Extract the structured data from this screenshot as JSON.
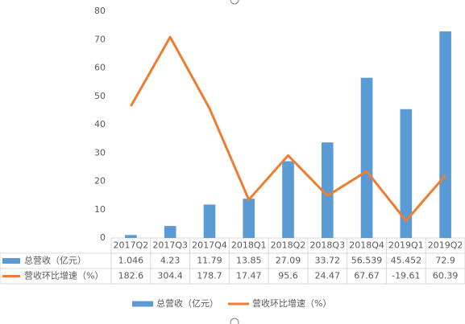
{
  "chart_data": {
    "type": "bar",
    "categories": [
      "2017Q2",
      "2017Q3",
      "2017Q4",
      "2018Q1",
      "2018Q2",
      "2018Q3",
      "2018Q4",
      "2019Q1",
      "2019Q2"
    ],
    "series": [
      {
        "name": "总营收（亿元）",
        "type": "bar",
        "color": "#5b9bd5",
        "values": [
          1.046,
          4.23,
          11.79,
          13.85,
          27.09,
          33.72,
          56.539,
          45.452,
          72.9
        ]
      },
      {
        "name": "营收环比增速（%）",
        "type": "line",
        "axis": "y2",
        "color": "#ed7d31",
        "values": [
          182.6,
          304.4,
          178.7,
          17.47,
          95.6,
          24.47,
          67.67,
          -19.61,
          60.39
        ]
      }
    ],
    "ylim": [
      0,
      80
    ],
    "yticks": [
      0,
      10,
      20,
      30,
      40,
      50,
      60,
      70,
      80
    ],
    "y2lim": [
      -50,
      350
    ],
    "data_table": true,
    "legend": "bottom",
    "grid": false
  }
}
